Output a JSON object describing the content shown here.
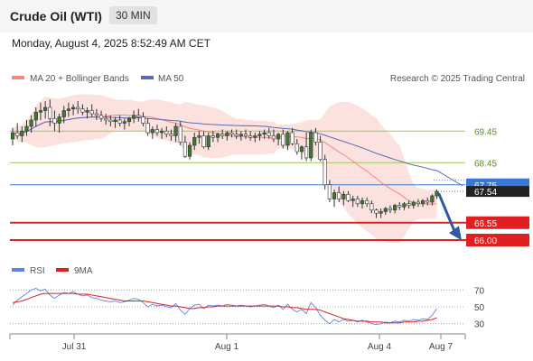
{
  "header": {
    "title": "Crude Oil (WTI)",
    "interval": "30 MIN"
  },
  "datetime": "Monday, August 4, 2025 8:52:49 AM CET",
  "legend": {
    "ma20_label": "MA 20 + Bollinger Bands",
    "ma50_label": "MA 50",
    "credit": "Research © 2025 Trading Central"
  },
  "colors": {
    "candle": "#3a7a2a",
    "ma20": "#f08a7a",
    "band": "#fbd8d4",
    "ma50": "#5c6ab5",
    "support": "#e02020",
    "resistance": "#9bc85a",
    "current": "#3a78d6",
    "arrow": "#2d5aa0",
    "rsi": "#5f82e6",
    "rsi_ma": "#e02020"
  },
  "chart_data": [
    {
      "type": "candlestick",
      "x_ticks": [
        "Jul 31",
        "Aug 1",
        "Aug 4",
        "Aug 7"
      ],
      "y_range": [
        65.6,
        70.6
      ],
      "levels": [
        {
          "value": "69.45",
          "kind": "resistance"
        },
        {
          "value": "68.45",
          "kind": "resistance"
        },
        {
          "value": "67.75",
          "kind": "current"
        },
        {
          "value": "67.54",
          "kind": "last"
        },
        {
          "value": "66.55",
          "kind": "support"
        },
        {
          "value": "66.00",
          "kind": "support"
        }
      ],
      "ohlc": [
        [
          69.2,
          69.55,
          69.0,
          69.4
        ],
        [
          69.4,
          69.7,
          69.2,
          69.3
        ],
        [
          69.3,
          69.6,
          69.1,
          69.45
        ],
        [
          69.45,
          69.8,
          69.3,
          69.6
        ],
        [
          69.6,
          69.95,
          69.4,
          69.8
        ],
        [
          69.8,
          70.2,
          69.6,
          70.05
        ],
        [
          70.05,
          70.35,
          69.8,
          70.1
        ],
        [
          70.1,
          70.4,
          69.85,
          70.2
        ],
        [
          70.2,
          70.45,
          69.6,
          69.85
        ],
        [
          69.85,
          70.1,
          69.45,
          69.7
        ],
        [
          69.7,
          70.0,
          69.4,
          69.9
        ],
        [
          69.9,
          70.25,
          69.7,
          70.1
        ],
        [
          70.1,
          70.35,
          69.9,
          70.15
        ],
        [
          70.15,
          70.3,
          69.95,
          70.2
        ],
        [
          70.2,
          70.4,
          70.0,
          70.15
        ],
        [
          70.15,
          70.3,
          69.95,
          70.05
        ],
        [
          70.05,
          70.2,
          69.85,
          70.1
        ],
        [
          70.1,
          70.3,
          69.9,
          70.0
        ],
        [
          70.0,
          70.15,
          69.8,
          69.95
        ],
        [
          69.95,
          70.1,
          69.75,
          69.85
        ],
        [
          69.85,
          70.0,
          69.65,
          69.8
        ],
        [
          69.8,
          69.95,
          69.6,
          69.75
        ],
        [
          69.75,
          69.9,
          69.55,
          69.8
        ],
        [
          69.8,
          69.95,
          69.6,
          69.7
        ],
        [
          69.7,
          69.85,
          69.5,
          69.75
        ],
        [
          69.75,
          69.9,
          69.6,
          69.85
        ],
        [
          69.85,
          70.1,
          69.7,
          69.95
        ],
        [
          69.95,
          70.15,
          69.75,
          69.9
        ],
        [
          69.9,
          70.05,
          69.6,
          69.7
        ],
        [
          69.7,
          69.85,
          69.3,
          69.4
        ],
        [
          69.4,
          69.6,
          69.2,
          69.5
        ],
        [
          69.5,
          69.65,
          69.3,
          69.4
        ],
        [
          69.4,
          69.55,
          69.2,
          69.45
        ],
        [
          69.45,
          69.6,
          69.25,
          69.35
        ],
        [
          69.35,
          69.5,
          69.15,
          69.3
        ],
        [
          69.3,
          69.7,
          69.1,
          69.6
        ],
        [
          69.6,
          69.75,
          69.0,
          69.1
        ],
        [
          69.1,
          69.3,
          68.6,
          68.65
        ],
        [
          68.65,
          69.1,
          68.55,
          69.0
        ],
        [
          69.0,
          69.4,
          68.85,
          69.25
        ],
        [
          69.25,
          69.45,
          69.05,
          69.3
        ],
        [
          69.3,
          69.45,
          68.9,
          68.95
        ],
        [
          68.95,
          69.4,
          68.85,
          69.3
        ],
        [
          69.3,
          69.45,
          69.1,
          69.25
        ],
        [
          69.25,
          69.4,
          69.1,
          69.35
        ],
        [
          69.35,
          69.5,
          69.2,
          69.3
        ],
        [
          69.3,
          69.45,
          69.15,
          69.4
        ],
        [
          69.4,
          69.5,
          69.25,
          69.35
        ],
        [
          69.35,
          69.5,
          69.2,
          69.3
        ],
        [
          69.3,
          69.45,
          69.15,
          69.35
        ],
        [
          69.35,
          69.5,
          69.2,
          69.3
        ],
        [
          69.3,
          69.45,
          69.15,
          69.25
        ],
        [
          69.25,
          69.4,
          69.1,
          69.3
        ],
        [
          69.3,
          69.45,
          69.15,
          69.35
        ],
        [
          69.35,
          69.5,
          69.2,
          69.4
        ],
        [
          69.4,
          69.55,
          69.2,
          69.3
        ],
        [
          69.3,
          69.5,
          69.1,
          69.2
        ],
        [
          69.2,
          69.4,
          69.0,
          69.35
        ],
        [
          69.35,
          69.5,
          68.9,
          69.0
        ],
        [
          69.0,
          69.45,
          68.85,
          69.4
        ],
        [
          69.4,
          69.55,
          69.0,
          69.05
        ],
        [
          69.05,
          69.2,
          68.7,
          68.8
        ],
        [
          68.8,
          69.0,
          68.55,
          68.95
        ],
        [
          68.95,
          69.4,
          68.5,
          68.6
        ],
        [
          68.6,
          69.5,
          68.5,
          69.4
        ],
        [
          69.4,
          69.55,
          69.0,
          69.1
        ],
        [
          69.1,
          69.3,
          68.5,
          68.55
        ],
        [
          68.55,
          68.7,
          67.6,
          67.75
        ],
        [
          67.75,
          67.9,
          67.2,
          67.3
        ],
        [
          67.3,
          67.6,
          67.05,
          67.5
        ],
        [
          67.5,
          67.7,
          67.2,
          67.3
        ],
        [
          67.3,
          67.55,
          67.1,
          67.45
        ],
        [
          67.45,
          67.55,
          67.2,
          67.25
        ],
        [
          67.25,
          67.4,
          67.05,
          67.3
        ],
        [
          67.3,
          67.4,
          67.05,
          67.15
        ],
        [
          67.15,
          67.35,
          67.0,
          67.25
        ],
        [
          67.25,
          67.35,
          67.05,
          67.15
        ],
        [
          67.15,
          67.25,
          66.85,
          66.95
        ],
        [
          66.95,
          67.0,
          66.7,
          66.85
        ],
        [
          66.85,
          67.0,
          66.7,
          66.9
        ],
        [
          66.9,
          67.05,
          66.8,
          67.0
        ],
        [
          67.0,
          67.1,
          66.85,
          66.95
        ],
        [
          66.95,
          67.15,
          66.85,
          67.1
        ],
        [
          67.1,
          67.2,
          66.95,
          67.05
        ],
        [
          67.05,
          67.2,
          66.95,
          67.15
        ],
        [
          67.15,
          67.25,
          67.0,
          67.1
        ],
        [
          67.1,
          67.25,
          67.0,
          67.2
        ],
        [
          67.2,
          67.3,
          67.05,
          67.15
        ],
        [
          67.15,
          67.3,
          67.05,
          67.25
        ],
        [
          67.25,
          67.35,
          67.1,
          67.2
        ],
        [
          67.2,
          67.45,
          67.1,
          67.4
        ],
        [
          67.4,
          67.6,
          67.3,
          67.54
        ]
      ]
    },
    {
      "type": "line",
      "name": "RSI",
      "y_ticks": [
        "70",
        "50",
        "30"
      ],
      "y_range": [
        20,
        80
      ],
      "series": [
        {
          "name": "RSI",
          "values": [
            52,
            58,
            62,
            66,
            70,
            72,
            69,
            71,
            64,
            60,
            64,
            67,
            66,
            68,
            65,
            63,
            64,
            61,
            60,
            58,
            57,
            56,
            57,
            55,
            56,
            58,
            60,
            59,
            55,
            50,
            53,
            51,
            52,
            50,
            49,
            54,
            46,
            41,
            48,
            52,
            53,
            48,
            52,
            51,
            52,
            51,
            53,
            52,
            51,
            52,
            51,
            50,
            51,
            52,
            53,
            51,
            49,
            52,
            47,
            53,
            47,
            44,
            47,
            42,
            55,
            49,
            40,
            34,
            30,
            35,
            32,
            35,
            33,
            34,
            32,
            34,
            32,
            30,
            29,
            30,
            32,
            31,
            33,
            32,
            34,
            33,
            35,
            34,
            36,
            35,
            40,
            48
          ]
        },
        {
          "name": "9MA",
          "values": [
            55,
            56,
            57,
            59,
            61,
            63,
            65,
            66,
            66,
            66,
            66,
            66,
            66,
            66,
            65,
            65,
            65,
            64,
            63,
            62,
            61,
            60,
            59,
            58,
            57,
            57,
            57,
            57,
            57,
            56,
            55,
            54,
            53,
            52,
            51,
            51,
            50,
            49,
            48,
            48,
            49,
            49,
            50,
            50,
            51,
            51,
            51,
            51,
            51,
            51,
            51,
            51,
            51,
            51,
            51,
            51,
            51,
            51,
            50,
            50,
            49,
            49,
            48,
            47,
            47,
            47,
            46,
            44,
            42,
            40,
            38,
            36,
            35,
            34,
            33,
            33,
            33,
            32,
            32,
            32,
            31,
            31,
            31,
            31,
            32,
            32,
            32,
            33,
            33,
            34,
            35,
            37
          ]
        }
      ]
    }
  ]
}
